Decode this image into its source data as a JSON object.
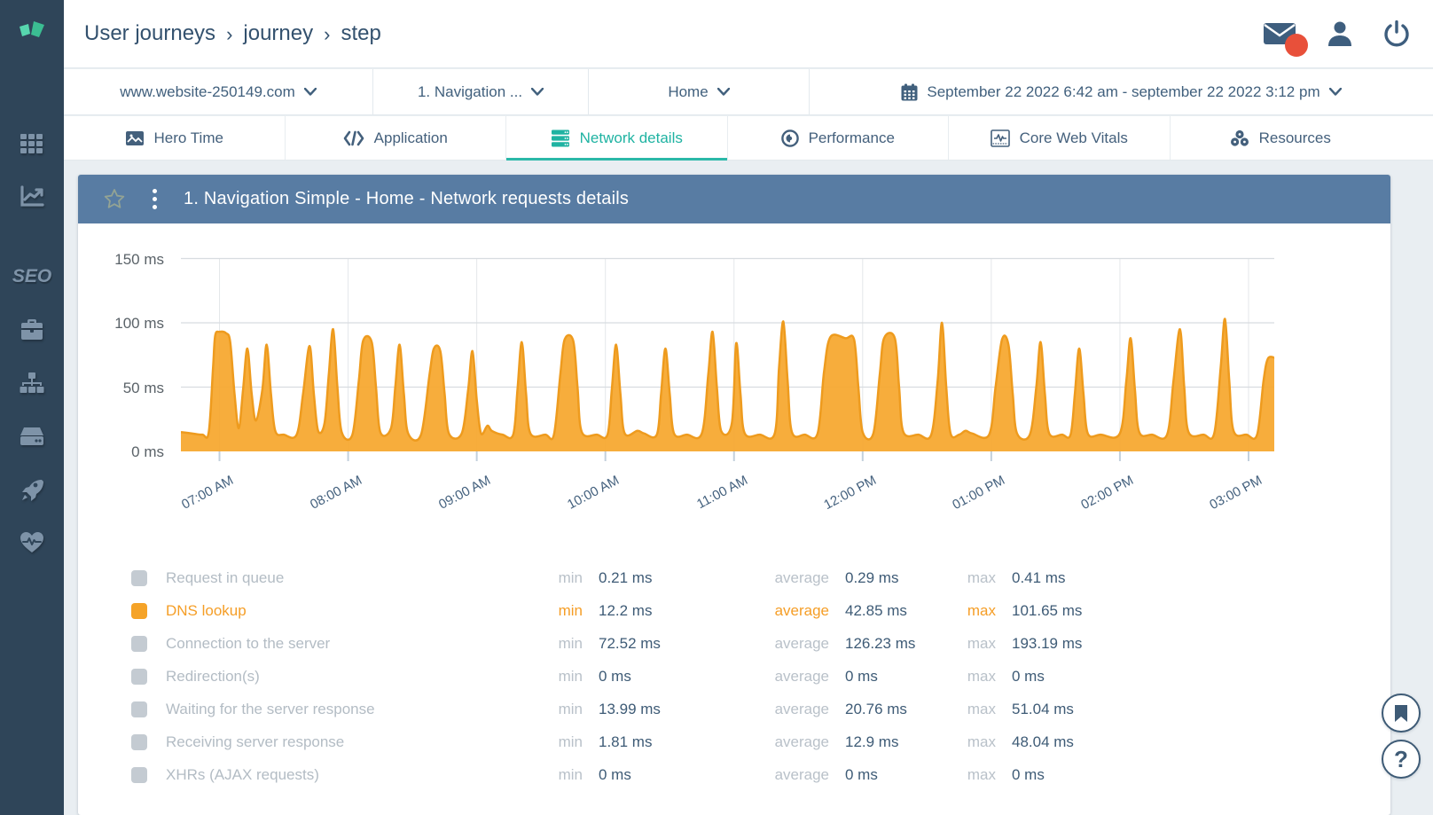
{
  "sidebar": {
    "seo_label": "SEO",
    "items": [
      {
        "name": "apps-grid"
      },
      {
        "name": "analytics"
      },
      {
        "name": "seo"
      },
      {
        "name": "briefcase"
      },
      {
        "name": "sitemap"
      },
      {
        "name": "server"
      },
      {
        "name": "rocket"
      },
      {
        "name": "health"
      }
    ]
  },
  "header": {
    "breadcrumb": {
      "item1": "User journeys",
      "item2": "journey",
      "item3": "step",
      "separator": "›"
    }
  },
  "filter_bar": {
    "site": "www.website-250149.com",
    "journey": "1. Navigation ...",
    "step": "Home",
    "date_range": "September 22 2022 6:42 am - september 22 2022 3:12 pm"
  },
  "tabs": [
    {
      "label": "Hero Time",
      "icon": "picture-icon",
      "active": false
    },
    {
      "label": "Application",
      "icon": "code-icon",
      "active": false
    },
    {
      "label": "Network details",
      "icon": "server-stack-icon",
      "active": true
    },
    {
      "label": "Performance",
      "icon": "target-eye-icon",
      "active": false
    },
    {
      "label": "Core Web Vitals",
      "icon": "monitor-wave-icon",
      "active": false
    },
    {
      "label": "Resources",
      "icon": "cluster-icon",
      "active": false
    }
  ],
  "panel": {
    "title": "1. Navigation Simple - Home - Network requests details"
  },
  "chart_data": {
    "type": "area",
    "title": "1. Navigation Simple - Home - Network requests details",
    "ylabel": "",
    "xlabel": "",
    "unit": "ms",
    "ylim": [
      0,
      150
    ],
    "y_ticks": [
      {
        "value": 150,
        "label": "150 ms"
      },
      {
        "value": 100,
        "label": "100 ms"
      },
      {
        "value": 50,
        "label": "50 ms"
      },
      {
        "value": 0,
        "label": "0 ms"
      }
    ],
    "x_ticks": [
      {
        "t": 18,
        "label": "07:00 AM"
      },
      {
        "t": 78,
        "label": "08:00 AM"
      },
      {
        "t": 138,
        "label": "09:00 AM"
      },
      {
        "t": 198,
        "label": "10:00 AM"
      },
      {
        "t": 258,
        "label": "11:00 AM"
      },
      {
        "t": 318,
        "label": "12:00 PM"
      },
      {
        "t": 378,
        "label": "01:00 PM"
      },
      {
        "t": 438,
        "label": "02:00 PM"
      },
      {
        "t": 498,
        "label": "03:00 PM"
      }
    ],
    "x_range_minutes": [
      0,
      510
    ],
    "x_range_label": "6:42 am - 3:12 pm",
    "grid": true,
    "series": [
      {
        "name": "DNS lookup",
        "color": "#F6A62B",
        "stroke": "#EE9B1E",
        "points": [
          [
            0,
            15
          ],
          [
            5,
            14
          ],
          [
            10,
            13
          ],
          [
            13,
            15
          ],
          [
            15,
            65
          ],
          [
            16,
            90
          ],
          [
            18,
            93
          ],
          [
            21,
            92
          ],
          [
            23,
            85
          ],
          [
            25,
            45
          ],
          [
            27,
            18
          ],
          [
            29,
            48
          ],
          [
            31,
            80
          ],
          [
            33,
            45
          ],
          [
            35,
            24
          ],
          [
            38,
            48
          ],
          [
            40,
            83
          ],
          [
            42,
            45
          ],
          [
            44,
            16
          ],
          [
            48,
            13
          ],
          [
            54,
            13
          ],
          [
            57,
            45
          ],
          [
            60,
            82
          ],
          [
            62,
            45
          ],
          [
            64,
            16
          ],
          [
            67,
            22
          ],
          [
            69,
            60
          ],
          [
            71,
            95
          ],
          [
            73,
            50
          ],
          [
            75,
            15
          ],
          [
            80,
            13
          ],
          [
            83,
            55
          ],
          [
            85,
            86
          ],
          [
            89,
            85
          ],
          [
            91,
            50
          ],
          [
            93,
            15
          ],
          [
            98,
            18
          ],
          [
            100,
            50
          ],
          [
            102,
            83
          ],
          [
            104,
            45
          ],
          [
            106,
            14
          ],
          [
            112,
            13
          ],
          [
            116,
            60
          ],
          [
            118,
            80
          ],
          [
            121,
            78
          ],
          [
            123,
            45
          ],
          [
            125,
            14
          ],
          [
            131,
            14
          ],
          [
            134,
            48
          ],
          [
            136,
            78
          ],
          [
            138,
            40
          ],
          [
            140,
            14
          ],
          [
            143,
            20
          ],
          [
            145,
            16
          ],
          [
            150,
            13
          ],
          [
            155,
            13
          ],
          [
            157,
            48
          ],
          [
            159,
            85
          ],
          [
            161,
            45
          ],
          [
            163,
            14
          ],
          [
            170,
            13
          ],
          [
            174,
            13
          ],
          [
            177,
            60
          ],
          [
            179,
            87
          ],
          [
            183,
            86
          ],
          [
            185,
            50
          ],
          [
            187,
            15
          ],
          [
            194,
            13
          ],
          [
            199,
            13
          ],
          [
            201,
            48
          ],
          [
            203,
            83
          ],
          [
            205,
            45
          ],
          [
            207,
            14
          ],
          [
            213,
            16
          ],
          [
            216,
            14
          ],
          [
            222,
            13
          ],
          [
            224,
            45
          ],
          [
            226,
            80
          ],
          [
            228,
            45
          ],
          [
            230,
            14
          ],
          [
            236,
            13
          ],
          [
            243,
            14
          ],
          [
            246,
            60
          ],
          [
            248,
            93
          ],
          [
            250,
            50
          ],
          [
            252,
            16
          ],
          [
            257,
            22
          ],
          [
            259,
            84
          ],
          [
            261,
            45
          ],
          [
            263,
            14
          ],
          [
            270,
            13
          ],
          [
            277,
            14
          ],
          [
            279,
            65
          ],
          [
            281,
            101
          ],
          [
            283,
            55
          ],
          [
            285,
            15
          ],
          [
            291,
            13
          ],
          [
            297,
            14
          ],
          [
            300,
            62
          ],
          [
            303,
            89
          ],
          [
            310,
            88
          ],
          [
            314,
            87
          ],
          [
            316,
            50
          ],
          [
            318,
            15
          ],
          [
            323,
            14
          ],
          [
            326,
            60
          ],
          [
            328,
            88
          ],
          [
            333,
            88
          ],
          [
            335,
            50
          ],
          [
            337,
            15
          ],
          [
            344,
            13
          ],
          [
            350,
            13
          ],
          [
            353,
            55
          ],
          [
            355,
            100
          ],
          [
            357,
            50
          ],
          [
            359,
            14
          ],
          [
            363,
            13
          ],
          [
            366,
            16
          ],
          [
            369,
            14
          ],
          [
            377,
            13
          ],
          [
            380,
            50
          ],
          [
            383,
            87
          ],
          [
            386,
            83
          ],
          [
            388,
            45
          ],
          [
            390,
            14
          ],
          [
            396,
            13
          ],
          [
            399,
            50
          ],
          [
            401,
            85
          ],
          [
            403,
            45
          ],
          [
            405,
            14
          ],
          [
            411,
            13
          ],
          [
            415,
            13
          ],
          [
            417,
            45
          ],
          [
            419,
            80
          ],
          [
            421,
            45
          ],
          [
            423,
            14
          ],
          [
            429,
            13
          ],
          [
            438,
            14
          ],
          [
            441,
            55
          ],
          [
            443,
            88
          ],
          [
            445,
            48
          ],
          [
            447,
            15
          ],
          [
            453,
            13
          ],
          [
            460,
            13
          ],
          [
            463,
            55
          ],
          [
            466,
            95
          ],
          [
            468,
            50
          ],
          [
            470,
            15
          ],
          [
            477,
            13
          ],
          [
            482,
            14
          ],
          [
            485,
            65
          ],
          [
            487,
            103
          ],
          [
            489,
            55
          ],
          [
            491,
            16
          ],
          [
            497,
            13
          ],
          [
            502,
            13
          ],
          [
            505,
            55
          ],
          [
            507,
            72
          ],
          [
            510,
            73
          ]
        ]
      }
    ]
  },
  "legend": {
    "keys": {
      "min": "min",
      "avg": "average",
      "max": "max"
    },
    "rows": [
      {
        "label": "Request in queue",
        "min": "0.21 ms",
        "avg": "0.29 ms",
        "max": "0.41 ms",
        "active": false
      },
      {
        "label": "DNS lookup",
        "min": "12.2 ms",
        "avg": "42.85 ms",
        "max": "101.65 ms",
        "active": true
      },
      {
        "label": "Connection to the server",
        "min": "72.52 ms",
        "avg": "126.23 ms",
        "max": "193.19 ms",
        "active": false
      },
      {
        "label": "Redirection(s)",
        "min": "0 ms",
        "avg": "0 ms",
        "max": "0 ms",
        "active": false
      },
      {
        "label": "Waiting for the server response",
        "min": "13.99 ms",
        "avg": "20.76 ms",
        "max": "51.04 ms",
        "active": false
      },
      {
        "label": "Receiving server response",
        "min": "1.81 ms",
        "avg": "12.9 ms",
        "max": "48.04 ms",
        "active": false
      },
      {
        "label": "XHRs (AJAX requests)",
        "min": "0 ms",
        "avg": "0 ms",
        "max": "0 ms",
        "active": false
      }
    ]
  },
  "colors": {
    "sidebar_bg": "#2F4559",
    "accent_teal": "#1FB3A2",
    "panel_header": "#587CA3",
    "series_orange": "#F6A62B",
    "text_slate": "#33516E",
    "badge_red": "#E8503A"
  },
  "fab": {
    "help_label": "?"
  }
}
